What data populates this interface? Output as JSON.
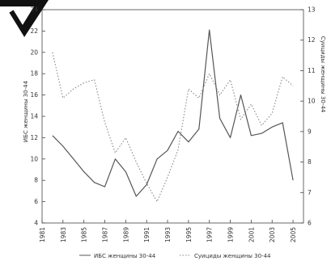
{
  "chart_data": {
    "type": "line",
    "x_axis": {
      "ticks": [
        "1981",
        "1983",
        "1985",
        "1987",
        "1989",
        "1991",
        "1993",
        "1995",
        "1997",
        "1999",
        "2001",
        "2003",
        "2005"
      ],
      "range": [
        1981,
        2006
      ]
    },
    "y_axis_left": {
      "label": "ИБС женщины 30-44",
      "ticks": [
        "4",
        "6",
        "8",
        "10",
        "12",
        "14",
        "16",
        "18",
        "20",
        "22",
        "24"
      ],
      "range": [
        4,
        24
      ]
    },
    "y_axis_right": {
      "label": "Суициды женщины 30-44",
      "ticks": [
        "6",
        "7",
        "8",
        "9",
        "10",
        "11",
        "12",
        "13"
      ],
      "range": [
        6,
        13
      ]
    },
    "series": [
      {
        "name": "ИБС женщины 30-44",
        "axis": "left",
        "style": "solid",
        "color": "#555555",
        "x": [
          1982,
          1983,
          1984,
          1985,
          1986,
          1987,
          1988,
          1989,
          1990,
          1991,
          1992,
          1993,
          1994,
          1995,
          1996,
          1997,
          1998,
          1999,
          2000,
          2001,
          2002,
          2003,
          2004,
          2005
        ],
        "y": [
          12.2,
          11.2,
          10.0,
          8.8,
          7.8,
          7.4,
          10.0,
          8.8,
          6.5,
          7.6,
          10.0,
          10.8,
          12.6,
          11.6,
          12.8,
          22.1,
          13.8,
          12.0,
          16.0,
          12.2,
          12.4,
          13.0,
          13.4,
          8.0
        ]
      },
      {
        "name": "Суициды женщины 30-44",
        "axis": "right",
        "style": "dotted",
        "color": "#888888",
        "x": [
          1982,
          1983,
          1984,
          1985,
          1986,
          1987,
          1988,
          1989,
          1990,
          1991,
          1992,
          1993,
          1994,
          1995,
          1996,
          1997,
          1998,
          1999,
          2000,
          2001,
          2002,
          2003,
          2004,
          2005
        ],
        "y": [
          11.6,
          10.1,
          10.4,
          10.6,
          10.7,
          9.3,
          8.3,
          8.8,
          8.0,
          7.3,
          6.7,
          7.5,
          8.4,
          10.4,
          10.1,
          10.9,
          10.2,
          10.7,
          9.4,
          9.9,
          9.2,
          9.6,
          10.8,
          10.5
        ]
      }
    ],
    "legend": {
      "placement": "bottom",
      "items": [
        "ИБС женщины 30-44",
        "Суициды женщины 30-44"
      ]
    },
    "grid": false
  }
}
